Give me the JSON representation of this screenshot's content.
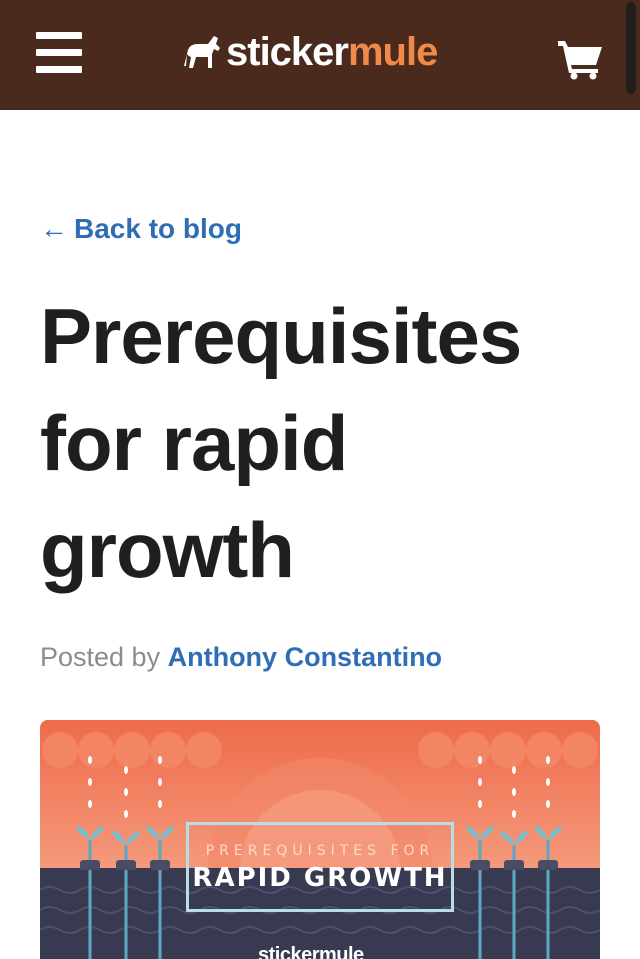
{
  "header": {
    "logo_word_1": "sticker",
    "logo_word_2": "mule",
    "bg_color": "#4a2a1d",
    "accent_color": "#f08a4b",
    "menu_icon": "hamburger-icon",
    "cart_icon": "shopping-cart-icon"
  },
  "nav": {
    "back_arrow": "←",
    "back_label": "Back to blog"
  },
  "post": {
    "title": "Prerequisites for rapid growth",
    "posted_by_label": "Posted by",
    "author": "Anthony Constantino"
  },
  "hero": {
    "subtitle": "PREREQUISITES FOR",
    "headline": "RAPID GROWTH",
    "brand": "stickermule"
  },
  "colors": {
    "link": "#2f6eb5",
    "text": "#1f1f1f",
    "muted": "#8c8c8c"
  }
}
